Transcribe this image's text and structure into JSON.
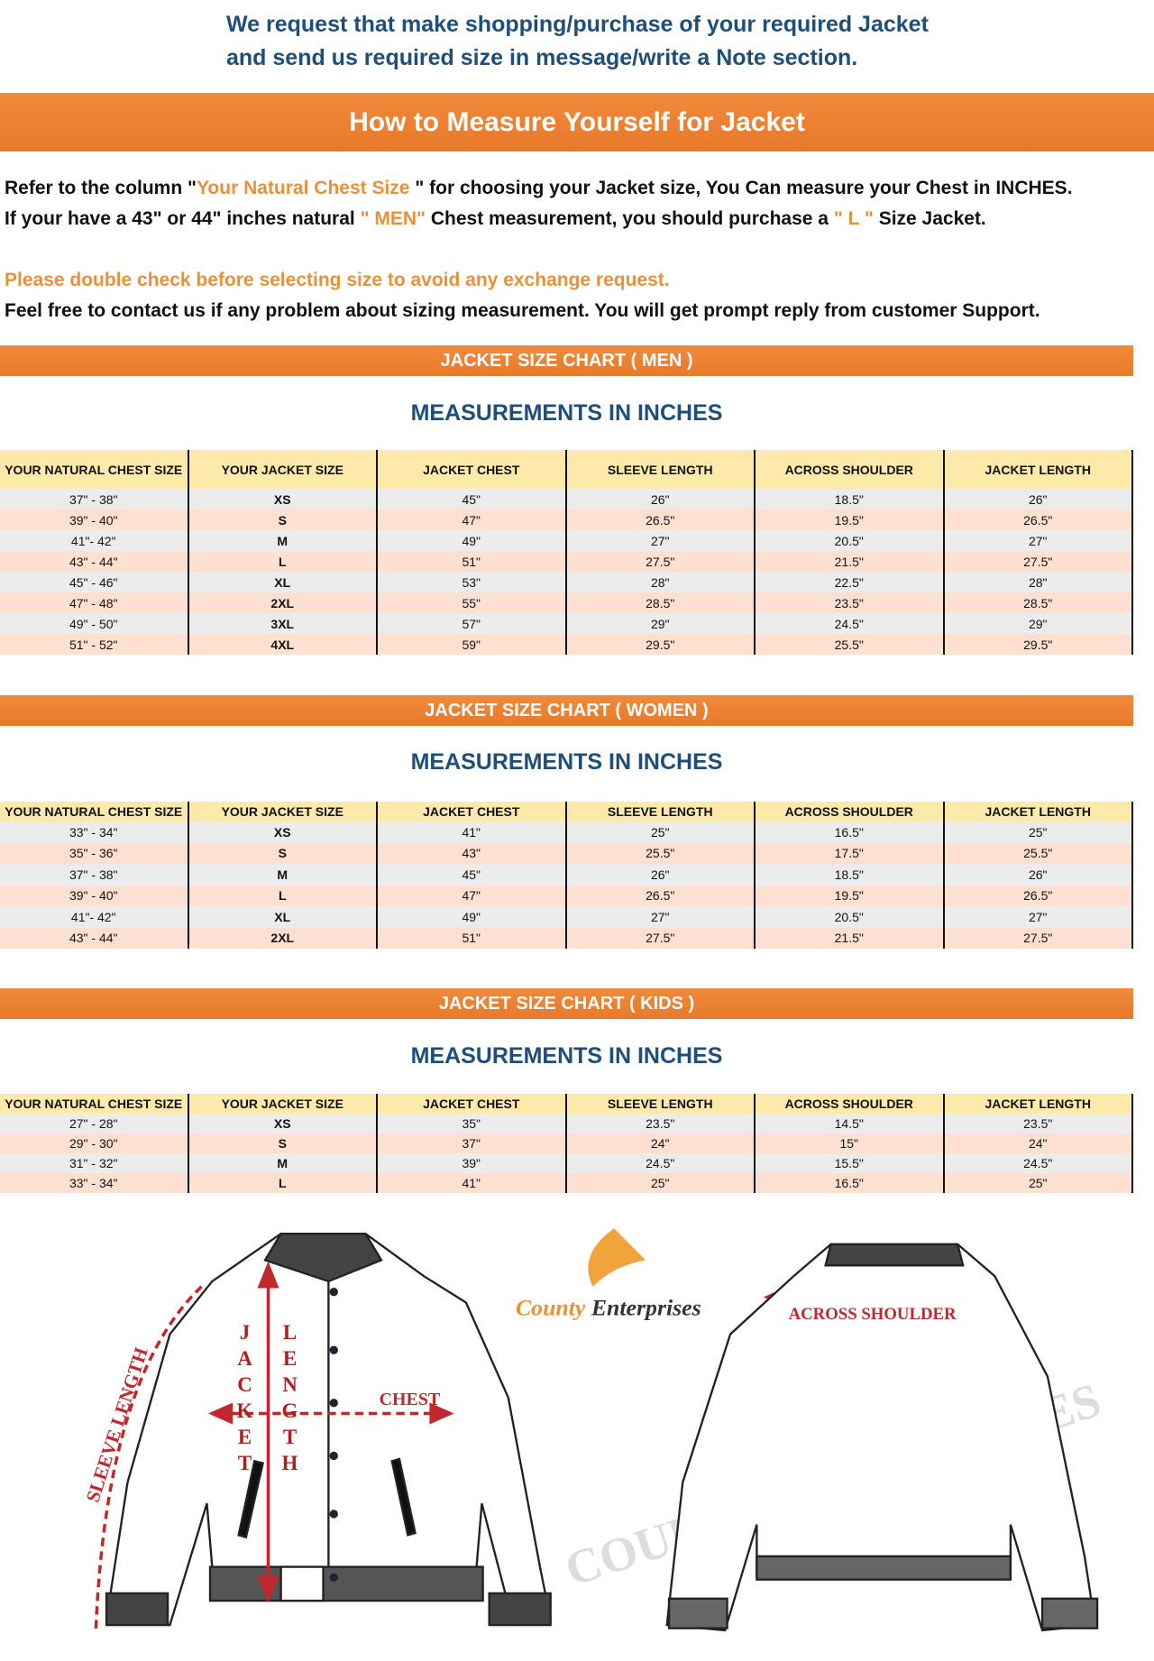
{
  "header": {
    "lines": [
      "We request that make shopping/purchase of your required Jacket",
      "and send us required size in message/write a Note section."
    ]
  },
  "banner": "How to Measure Yourself for Jacket",
  "instructions": {
    "line1": [
      "Refer to the column \"",
      "Your Natural Chest Size",
      "\" for choosing your Jacket size, You Can measure your Chest in INCHES."
    ],
    "line2": [
      "If your have a 43\" or 44\"  inches natural",
      "\" MEN\"",
      "Chest measurement, you should purchase a",
      "\" L \"",
      "Size Jacket."
    ],
    "note": "Please double check before selecting size to avoid any exchange request.",
    "contact": "Feel free to contact us if any problem about sizing measurement. You will get prompt reply from customer Support."
  },
  "tables": [
    {
      "title": "JACKET SIZE CHART ( MEN )",
      "subtitle": "MEASUREMENTS IN INCHES",
      "columns": [
        "YOUR NATURAL CHEST SIZE",
        "YOUR JACKET SIZE",
        "JACKET CHEST",
        "SLEEVE LENGTH",
        "ACROSS SHOULDER",
        "JACKET LENGTH"
      ],
      "rows": [
        [
          "37\" - 38\"",
          "XS",
          "45\"",
          "26\"",
          "18.5\"",
          "26\""
        ],
        [
          "39\" - 40\"",
          "S",
          "47\"",
          "26.5\"",
          "19.5\"",
          "26.5\""
        ],
        [
          "41\"- 42\"",
          "M",
          "49\"",
          "27\"",
          "20.5\"",
          "27\""
        ],
        [
          "43\" - 44\"",
          "L",
          "51\"",
          "27.5\"",
          "21.5\"",
          "27.5\""
        ],
        [
          "45\" - 46\"",
          "XL",
          "53\"",
          "28\"",
          "22.5\"",
          "28\""
        ],
        [
          "47\" - 48\"",
          "2XL",
          "55\"",
          "28.5\"",
          "23.5\"",
          "28.5\""
        ],
        [
          "49\" - 50\"",
          "3XL",
          "57\"",
          "29\"",
          "24.5\"",
          "29\""
        ],
        [
          "51\" - 52\"",
          "4XL",
          "59\"",
          "29.5\"",
          "25.5\"",
          "29.5\""
        ]
      ]
    },
    {
      "title": "JACKET SIZE CHART ( WOMEN )",
      "subtitle": "MEASUREMENTS IN INCHES",
      "columns": [
        "YOUR NATURAL CHEST SIZE",
        "YOUR JACKET SIZE",
        "JACKET CHEST",
        "SLEEVE LENGTH",
        "ACROSS SHOULDER",
        "JACKET LENGTH"
      ],
      "rows": [
        [
          "33\" - 34\"",
          "XS",
          "41\"",
          "25\"",
          "16.5\"",
          "25\""
        ],
        [
          "35\" - 36\"",
          "S",
          "43\"",
          "25.5\"",
          "17.5\"",
          "25.5\""
        ],
        [
          "37\" - 38\"",
          "M",
          "45\"",
          "26\"",
          "18.5\"",
          "26\""
        ],
        [
          "39\" - 40\"",
          "L",
          "47\"",
          "26.5\"",
          "19.5\"",
          "26.5\""
        ],
        [
          "41\"- 42\"",
          "XL",
          "49\"",
          "27\"",
          "20.5\"",
          "27\""
        ],
        [
          "43\" - 44\"",
          "2XL",
          "51\"",
          "27.5\"",
          "21.5\"",
          "27.5\""
        ]
      ]
    },
    {
      "title": "JACKET SIZE CHART ( KIDS )",
      "subtitle": "MEASUREMENTS IN INCHES",
      "columns": [
        "YOUR NATURAL CHEST SIZE",
        "YOUR JACKET SIZE",
        "JACKET CHEST",
        "SLEEVE LENGTH",
        "ACROSS SHOULDER",
        "JACKET LENGTH"
      ],
      "rows": [
        [
          "27\" - 28\"",
          "XS",
          "35\"",
          "23.5\"",
          "14.5\"",
          "23.5\""
        ],
        [
          "29\" - 30\"",
          "S",
          "37\"",
          "24\"",
          "15\"",
          "24\""
        ],
        [
          "31\" - 32\"",
          "M",
          "39\"",
          "24.5\"",
          "15.5\"",
          "24.5\""
        ],
        [
          "33\" - 34\"",
          "L",
          "41\"",
          "25\"",
          "16.5\"",
          "25\""
        ]
      ]
    }
  ],
  "diagram": {
    "brand": [
      "County",
      "Enterprises"
    ],
    "sleeve_length": "SLEEVE LENGTH",
    "jacket": "JACKET",
    "length": "LENGTH",
    "chest": "CHEST",
    "across_shoulder": "ACROSS SHOULDER",
    "watermark": "COUNTY ENTERPRISES"
  }
}
